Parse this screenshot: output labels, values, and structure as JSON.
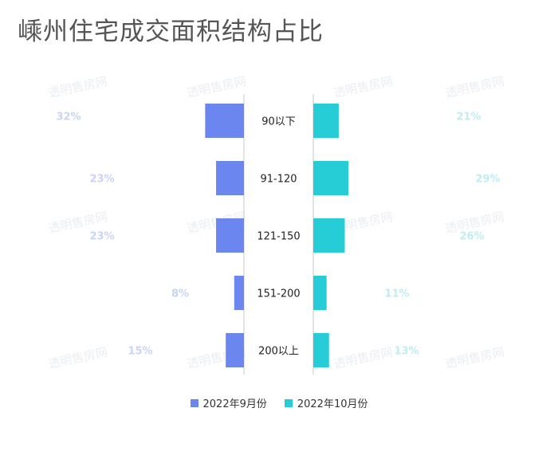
{
  "title": "嵊州住宅成交面积结构占比",
  "colors": {
    "sep": "#6b86ee",
    "oct": "#26cdd6",
    "sep_label": "#c9d5f7",
    "oct_label": "#bfeef2",
    "axis": "#c8c8c8"
  },
  "watermark": "透明售房网",
  "chart_data": {
    "type": "bar",
    "orientation": "horizontal-butterfly",
    "categories": [
      "90以下",
      "91-120",
      "121-150",
      "151-200",
      "200以上"
    ],
    "series": [
      {
        "name": "2022年9月份",
        "values": [
          32,
          23,
          23,
          8,
          15
        ],
        "labels": [
          "32%",
          "23%",
          "23%",
          "8%",
          "15%"
        ]
      },
      {
        "name": "2022年10月份",
        "values": [
          21,
          29,
          26,
          11,
          13
        ],
        "labels": [
          "21%",
          "29%",
          "26%",
          "11%",
          "13%"
        ]
      }
    ],
    "unit": "%",
    "legend_position": "bottom-center",
    "grid": false
  }
}
